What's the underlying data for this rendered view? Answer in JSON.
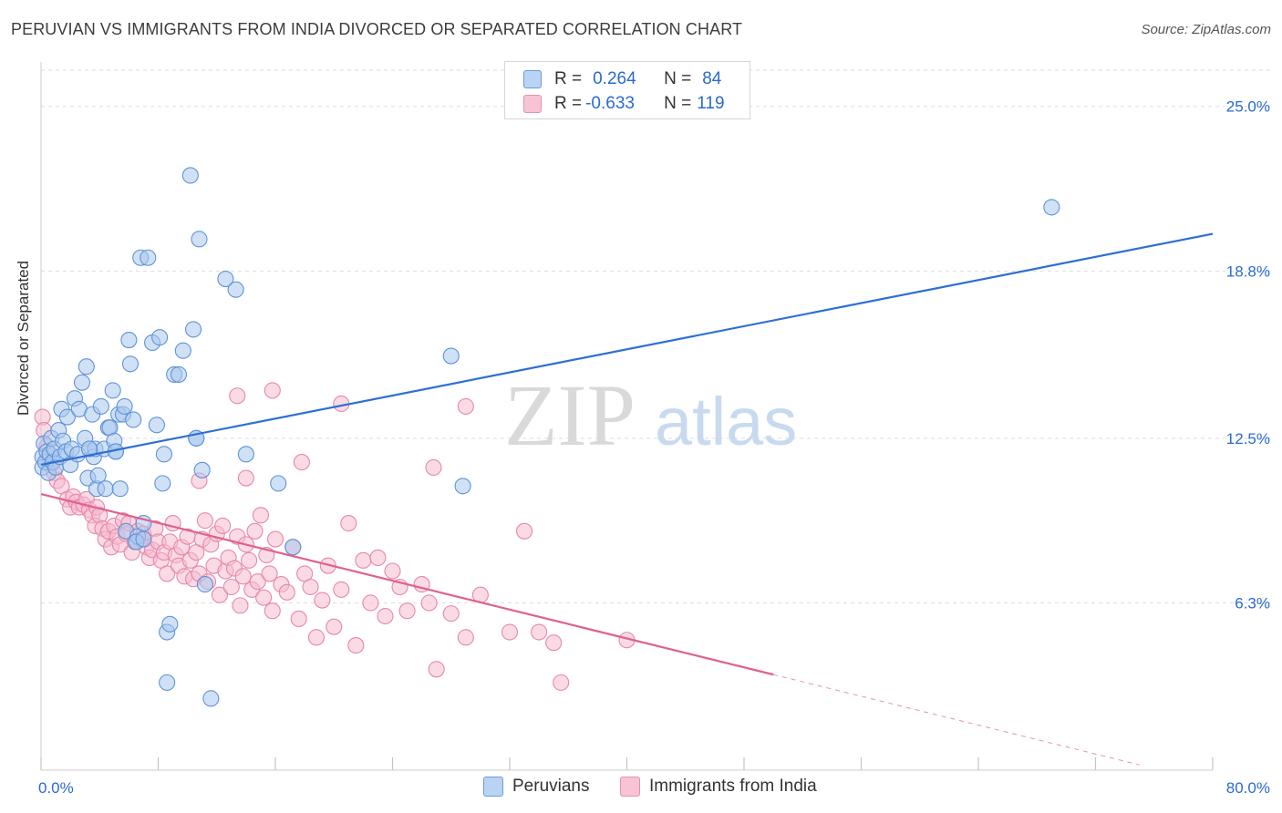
{
  "title": "PERUVIAN VS IMMIGRANTS FROM INDIA DIVORCED OR SEPARATED CORRELATION CHART",
  "source": "Source: ZipAtlas.com",
  "watermark": {
    "zip": "ZIP",
    "atlas": "atlas"
  },
  "legend": {
    "rows": [
      {
        "r_label": "R =",
        "r_value": "0.264",
        "n_label": "N =",
        "n_value": "84"
      },
      {
        "r_label": "R =",
        "r_value": "-0.633",
        "n_label": "N =",
        "n_value": "119"
      }
    ]
  },
  "bottom_legend": {
    "peruvians": "Peruvians",
    "india": "Immigrants from India"
  },
  "colors": {
    "blue_fill": "#a9c8ef",
    "blue_stroke": "#5f93d6",
    "blue_line": "#2d6fd3",
    "pink_fill": "#f6bcd0",
    "pink_stroke": "#e688aa",
    "pink_line": "#e0608f",
    "axis_text": "#2a6ad0",
    "grid": "#dddddd"
  },
  "chart_data": {
    "type": "scatter",
    "title": "PERUVIAN VS IMMIGRANTS FROM INDIA DIVORCED OR SEPARATED CORRELATION CHART",
    "xlabel": "",
    "ylabel": "Divorced or Separated",
    "xlim": [
      0,
      80
    ],
    "ylim": [
      0,
      26.5
    ],
    "x_tick_labels": [
      "0.0%",
      "80.0%"
    ],
    "y_ticks": [
      {
        "value": 6.3,
        "label": "6.3%"
      },
      {
        "value": 12.5,
        "label": "12.5%"
      },
      {
        "value": 18.8,
        "label": "18.8%"
      },
      {
        "value": 25.0,
        "label": "25.0%"
      }
    ],
    "grid": true,
    "legend_position": "top-center",
    "series": [
      {
        "name": "Peruvians",
        "r": 0.264,
        "n": 84,
        "trend": {
          "x": [
            0,
            80
          ],
          "y": [
            11.5,
            20.2
          ]
        },
        "points": [
          [
            0.1,
            11.8
          ],
          [
            0.1,
            11.4
          ],
          [
            0.2,
            12.3
          ],
          [
            0.3,
            11.6
          ],
          [
            0.4,
            12.0
          ],
          [
            0.5,
            11.2
          ],
          [
            0.6,
            11.9
          ],
          [
            0.7,
            12.5
          ],
          [
            0.8,
            11.6
          ],
          [
            0.9,
            12.1
          ],
          [
            1.0,
            11.4
          ],
          [
            1.2,
            12.8
          ],
          [
            1.3,
            11.8
          ],
          [
            1.4,
            13.6
          ],
          [
            1.5,
            12.4
          ],
          [
            1.7,
            12.0
          ],
          [
            1.8,
            13.3
          ],
          [
            2.0,
            11.5
          ],
          [
            2.1,
            12.1
          ],
          [
            2.3,
            14.0
          ],
          [
            2.5,
            11.9
          ],
          [
            2.6,
            13.6
          ],
          [
            2.8,
            14.6
          ],
          [
            3.0,
            12.5
          ],
          [
            3.1,
            15.2
          ],
          [
            3.2,
            11.0
          ],
          [
            3.3,
            12.1
          ],
          [
            3.5,
            13.4
          ],
          [
            3.6,
            11.8
          ],
          [
            3.7,
            12.1
          ],
          [
            3.8,
            10.6
          ],
          [
            3.9,
            11.1
          ],
          [
            4.1,
            13.7
          ],
          [
            4.3,
            12.1
          ],
          [
            4.4,
            10.6
          ],
          [
            4.6,
            12.9
          ],
          [
            4.7,
            12.9
          ],
          [
            4.9,
            14.3
          ],
          [
            5.0,
            12.4
          ],
          [
            5.1,
            12.0
          ],
          [
            5.3,
            13.4
          ],
          [
            5.4,
            10.6
          ],
          [
            5.6,
            13.4
          ],
          [
            5.7,
            13.7
          ],
          [
            5.8,
            9.0
          ],
          [
            6.0,
            16.2
          ],
          [
            6.1,
            15.3
          ],
          [
            6.3,
            13.2
          ],
          [
            6.5,
            8.6
          ],
          [
            6.6,
            8.8
          ],
          [
            6.8,
            19.3
          ],
          [
            7.0,
            9.3
          ],
          [
            7.3,
            19.3
          ],
          [
            7.6,
            16.1
          ],
          [
            7.9,
            13.0
          ],
          [
            8.1,
            16.3
          ],
          [
            8.3,
            10.8
          ],
          [
            8.4,
            11.9
          ],
          [
            8.6,
            5.2
          ],
          [
            8.8,
            5.5
          ],
          [
            9.1,
            14.9
          ],
          [
            9.4,
            14.9
          ],
          [
            9.7,
            15.8
          ],
          [
            10.2,
            22.4
          ],
          [
            10.4,
            16.6
          ],
          [
            10.6,
            12.5
          ],
          [
            10.8,
            20.0
          ],
          [
            11.0,
            11.3
          ],
          [
            11.2,
            7.0
          ],
          [
            11.6,
            2.7
          ],
          [
            12.6,
            18.5
          ],
          [
            13.3,
            18.1
          ],
          [
            14.0,
            11.9
          ],
          [
            16.2,
            10.8
          ],
          [
            17.2,
            8.4
          ],
          [
            28.0,
            15.6
          ],
          [
            28.8,
            10.7
          ],
          [
            69.0,
            21.2
          ],
          [
            6.5,
            8.6
          ],
          [
            7.0,
            8.7
          ],
          [
            8.6,
            3.3
          ],
          [
            10.6,
            12.5
          ],
          [
            3.3,
            12.1
          ],
          [
            5.1,
            12.0
          ]
        ]
      },
      {
        "name": "Immigrants from India",
        "r": -0.633,
        "n": 119,
        "trend": {
          "x": [
            0,
            50
          ],
          "y": [
            10.4,
            3.6
          ]
        },
        "points": [
          [
            0.1,
            13.3
          ],
          [
            0.2,
            12.8
          ],
          [
            0.4,
            12.2
          ],
          [
            0.6,
            11.5
          ],
          [
            0.9,
            11.2
          ],
          [
            1.1,
            10.9
          ],
          [
            1.4,
            10.7
          ],
          [
            1.8,
            10.2
          ],
          [
            2.0,
            9.9
          ],
          [
            2.2,
            10.3
          ],
          [
            2.4,
            10.1
          ],
          [
            2.6,
            9.9
          ],
          [
            2.9,
            10.0
          ],
          [
            3.1,
            10.2
          ],
          [
            3.3,
            9.8
          ],
          [
            3.5,
            9.6
          ],
          [
            3.7,
            9.2
          ],
          [
            3.8,
            9.9
          ],
          [
            4.0,
            9.6
          ],
          [
            4.2,
            9.1
          ],
          [
            4.4,
            8.7
          ],
          [
            4.6,
            9.0
          ],
          [
            4.8,
            8.4
          ],
          [
            5.0,
            9.2
          ],
          [
            5.2,
            8.8
          ],
          [
            5.4,
            8.5
          ],
          [
            5.6,
            9.4
          ],
          [
            5.8,
            8.9
          ],
          [
            6.0,
            9.3
          ],
          [
            6.2,
            8.2
          ],
          [
            6.4,
            8.6
          ],
          [
            6.6,
            9.0
          ],
          [
            6.8,
            8.7
          ],
          [
            7.0,
            8.9
          ],
          [
            7.2,
            8.4
          ],
          [
            7.4,
            8.0
          ],
          [
            7.6,
            8.3
          ],
          [
            7.8,
            9.1
          ],
          [
            8.0,
            8.6
          ],
          [
            8.2,
            7.9
          ],
          [
            8.4,
            8.2
          ],
          [
            8.6,
            7.4
          ],
          [
            8.8,
            8.6
          ],
          [
            9.0,
            9.3
          ],
          [
            9.2,
            8.1
          ],
          [
            9.4,
            7.7
          ],
          [
            9.6,
            8.4
          ],
          [
            9.8,
            7.3
          ],
          [
            10.0,
            8.8
          ],
          [
            10.2,
            7.9
          ],
          [
            10.4,
            7.2
          ],
          [
            10.6,
            8.2
          ],
          [
            10.8,
            7.4
          ],
          [
            11.0,
            8.7
          ],
          [
            11.2,
            9.4
          ],
          [
            11.4,
            7.1
          ],
          [
            11.6,
            8.5
          ],
          [
            11.8,
            7.7
          ],
          [
            12.0,
            8.9
          ],
          [
            12.2,
            6.6
          ],
          [
            12.4,
            9.2
          ],
          [
            12.6,
            7.5
          ],
          [
            12.8,
            8.0
          ],
          [
            13.0,
            6.9
          ],
          [
            13.2,
            7.6
          ],
          [
            13.4,
            8.8
          ],
          [
            13.6,
            6.2
          ],
          [
            13.8,
            7.3
          ],
          [
            14.0,
            8.5
          ],
          [
            14.2,
            7.9
          ],
          [
            14.4,
            6.8
          ],
          [
            14.6,
            9.0
          ],
          [
            14.8,
            7.1
          ],
          [
            15.0,
            9.6
          ],
          [
            15.2,
            6.5
          ],
          [
            15.4,
            8.1
          ],
          [
            15.6,
            7.4
          ],
          [
            15.8,
            6.0
          ],
          [
            16.0,
            8.7
          ],
          [
            16.4,
            7.0
          ],
          [
            16.8,
            6.7
          ],
          [
            17.2,
            8.4
          ],
          [
            17.6,
            5.7
          ],
          [
            18.0,
            7.4
          ],
          [
            18.4,
            6.9
          ],
          [
            18.8,
            5.0
          ],
          [
            19.2,
            6.4
          ],
          [
            19.6,
            7.7
          ],
          [
            20.0,
            5.4
          ],
          [
            20.5,
            6.8
          ],
          [
            21.0,
            9.3
          ],
          [
            21.5,
            4.7
          ],
          [
            22.0,
            7.9
          ],
          [
            22.5,
            6.3
          ],
          [
            23.0,
            8.0
          ],
          [
            23.5,
            5.8
          ],
          [
            24.0,
            7.5
          ],
          [
            24.5,
            6.9
          ],
          [
            25.0,
            6.0
          ],
          [
            26.0,
            7.0
          ],
          [
            26.5,
            6.3
          ],
          [
            27.0,
            3.8
          ],
          [
            28.0,
            5.9
          ],
          [
            29.0,
            5.0
          ],
          [
            30.0,
            6.6
          ],
          [
            32.0,
            5.2
          ],
          [
            33.0,
            9.0
          ],
          [
            34.0,
            5.2
          ],
          [
            35.0,
            4.8
          ],
          [
            35.5,
            3.3
          ],
          [
            40.0,
            4.9
          ],
          [
            14.0,
            11.0
          ],
          [
            17.8,
            11.6
          ],
          [
            20.5,
            13.8
          ],
          [
            13.4,
            14.1
          ],
          [
            15.8,
            14.3
          ],
          [
            10.8,
            10.9
          ],
          [
            29.0,
            13.7
          ],
          [
            26.8,
            11.4
          ]
        ]
      }
    ]
  }
}
